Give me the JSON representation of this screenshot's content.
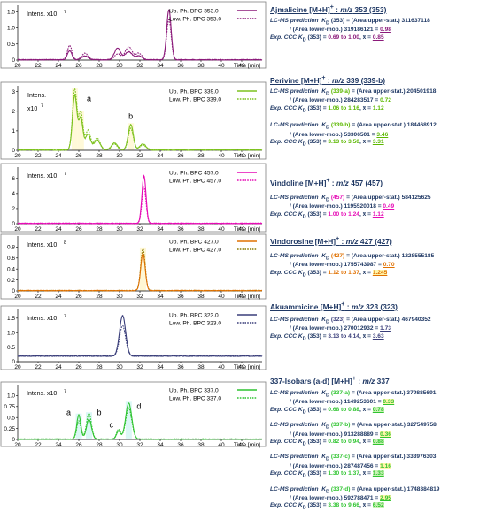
{
  "chart_data": [
    {
      "type": "line",
      "intens_label": "Intens. x10",
      "intens_exp": "7",
      "xlabel": "Time [min]",
      "xlim": [
        20,
        44
      ],
      "x_ticks": [
        20,
        22,
        24,
        26,
        28,
        30,
        32,
        34,
        36,
        38,
        40,
        42
      ],
      "ylim": [
        0,
        1.7
      ],
      "y_ticks": [
        0,
        0.5,
        1.0,
        1.5
      ],
      "y_tick_labels": [
        "0",
        "0.5",
        "1.0",
        "1.5"
      ],
      "legend": [
        "Up. Ph. BPC 353.0",
        "Low. Ph. BPC 353.0"
      ],
      "color": "#8b1a7a",
      "peaks": [
        {
          "x": 25.1,
          "h_up": 0.28,
          "h_low": 0.45,
          "w": 0.22
        },
        {
          "x": 26.6,
          "h_up": 0.12,
          "h_low": 0.2,
          "w": 0.3
        },
        {
          "x": 29.8,
          "h_up": 0.36,
          "h_low": 0.18,
          "w": 0.3
        },
        {
          "x": 30.9,
          "h_up": 0.25,
          "h_low": 0.4,
          "w": 0.35
        },
        {
          "x": 31.9,
          "h_up": 0.12,
          "h_low": 0.2,
          "w": 0.3
        },
        {
          "x": 34.85,
          "h_up": 1.55,
          "h_low": 1.25,
          "w": 0.22
        }
      ],
      "labels": []
    },
    {
      "type": "line",
      "intens_label": "Intens.",
      "intens_exp_label": "x10",
      "intens_exp": "7",
      "xlabel": "Time [min]",
      "xlim": [
        20,
        44
      ],
      "x_ticks": [
        20,
        22,
        24,
        26,
        28,
        30,
        32,
        34,
        36,
        38,
        40,
        42
      ],
      "ylim": [
        0,
        3.3
      ],
      "y_ticks": [
        0,
        1,
        2,
        3
      ],
      "y_tick_labels": [
        "0",
        "1",
        "2",
        "3"
      ],
      "legend": [
        "Up. Ph. BPC 339.0",
        "Low. Ph. BPC 339.0"
      ],
      "color": "#7dc21e",
      "peaks": [
        {
          "x": 25.6,
          "h_up": 2.8,
          "h_low": 3.1,
          "w": 0.22
        },
        {
          "x": 26.2,
          "h_up": 1.6,
          "h_low": 1.9,
          "w": 0.2
        },
        {
          "x": 26.9,
          "h_up": 0.8,
          "h_low": 1.0,
          "w": 0.25
        },
        {
          "x": 27.8,
          "h_up": 0.5,
          "h_low": 0.6,
          "w": 0.3
        },
        {
          "x": 29.5,
          "h_up": 0.35,
          "h_low": 0.3,
          "w": 0.3
        },
        {
          "x": 31.1,
          "h_up": 1.3,
          "h_low": 1.1,
          "w": 0.25
        },
        {
          "x": 32.3,
          "h_up": 0.3,
          "h_low": 0.25,
          "w": 0.3
        }
      ],
      "labels": [
        {
          "text": "a",
          "x": 27.0,
          "y": 2.5
        },
        {
          "text": "b",
          "x": 31.1,
          "y": 1.6
        }
      ]
    },
    {
      "type": "line",
      "intens_label": "Intens. x10",
      "intens_exp": "7",
      "xlabel": "Time [min]",
      "xlim": [
        20,
        44
      ],
      "x_ticks": [
        20,
        22,
        24,
        26,
        28,
        30,
        32,
        34,
        36,
        38,
        40,
        42
      ],
      "ylim": [
        0,
        7.5
      ],
      "y_ticks": [
        0,
        2,
        4,
        6
      ],
      "y_tick_labels": [
        "0",
        "2",
        "4",
        "6"
      ],
      "legend": [
        "Up. Ph. BPC 457.0",
        "Low. Ph. BPC 457.0"
      ],
      "color": "#e60ab5",
      "peaks": [
        {
          "x": 32.4,
          "h_up": 6.3,
          "h_low": 4.8,
          "w": 0.2
        }
      ],
      "labels": []
    },
    {
      "type": "line",
      "intens_label": "Intens. x10",
      "intens_exp": "8",
      "xlabel": "Time [min]",
      "xlim": [
        20,
        44
      ],
      "x_ticks": [
        20,
        22,
        24,
        26,
        28,
        30,
        32,
        34,
        36,
        38,
        40,
        42
      ],
      "ylim": [
        0,
        1.0
      ],
      "y_ticks": [
        0,
        0.2,
        0.4,
        0.6,
        0.8
      ],
      "y_tick_labels": [
        "0",
        "0.2",
        "0.4",
        "0.6",
        "0.8"
      ],
      "legend": [
        "Up. Ph. BPC 427.0",
        "Low. Ph. BPC 427.0"
      ],
      "color": "#e07000",
      "color_low": "#8a7a00",
      "peaks": [
        {
          "x": 32.3,
          "h_up": 0.68,
          "h_low": 0.76,
          "w": 0.22
        }
      ],
      "labels": []
    },
    {
      "type": "line",
      "intens_label": "Intens. x10",
      "intens_exp": "7",
      "xlabel": "Time [min]",
      "xlim": [
        20,
        44
      ],
      "x_ticks": [
        20,
        22,
        24,
        26,
        28,
        30,
        32,
        34,
        36,
        38,
        40,
        42
      ],
      "ylim": [
        0,
        1.8
      ],
      "y_ticks": [
        0,
        0.5,
        1.0,
        1.5
      ],
      "y_tick_labels": [
        "0",
        "0.5",
        "1.0",
        "1.5"
      ],
      "legend": [
        "Up. Ph. BPC 323.0",
        "Low. Ph. BPC 323.0"
      ],
      "color": "#3a3e7a",
      "baseline": 0.18,
      "peaks": [
        {
          "x": 30.3,
          "h_up": 1.4,
          "h_low": 1.05,
          "w": 0.3
        }
      ],
      "labels": []
    },
    {
      "type": "line",
      "intens_label": "Intens. x10",
      "intens_exp": "7",
      "xlabel": "Time [min]",
      "xlim": [
        20,
        44
      ],
      "x_ticks": [
        20,
        22,
        24,
        26,
        28,
        30,
        32,
        34,
        36,
        38,
        40,
        42
      ],
      "ylim": [
        0,
        1.25
      ],
      "y_ticks": [
        0,
        0.25,
        0.5,
        0.75,
        1.0
      ],
      "y_tick_labels": [
        "0",
        "0.25",
        "0.5",
        "0.75",
        "1.0"
      ],
      "legend": [
        "Up. Ph. BPC 337.0",
        "Low. Ph. BPC 337.0"
      ],
      "color": "#2fc430",
      "peaks": [
        {
          "x": 26.0,
          "h_up": 0.55,
          "h_low": 0.42,
          "w": 0.2
        },
        {
          "x": 27.0,
          "h_up": 0.45,
          "h_low": 0.58,
          "w": 0.25
        },
        {
          "x": 29.9,
          "h_up": 0.18,
          "h_low": 0.22,
          "w": 0.2
        },
        {
          "x": 30.9,
          "h_up": 0.82,
          "h_low": 0.7,
          "w": 0.3
        }
      ],
      "labels": [
        {
          "text": "a",
          "x": 25.0,
          "y": 0.55
        },
        {
          "text": "b",
          "x": 28.0,
          "y": 0.55
        },
        {
          "text": "c",
          "x": 29.2,
          "y": 0.27
        },
        {
          "text": "d",
          "x": 31.9,
          "y": 0.7
        }
      ]
    }
  ],
  "info": {
    "p1": {
      "title": "Ajmalicine [M+H]",
      "sup": "+",
      "title_mid": " : ",
      "title_mz": "m/z",
      "title_tail": " 353 (353)",
      "rows": [
        {
          "a": "LC-MS prediction",
          "b": "K",
          "c": "D",
          "d": " (353) = (Area upper-stat.) 311637118"
        },
        {
          "a": "",
          "b": "",
          "c": "",
          "d": "/ (Area lower-mob.) 319186121 = ",
          "v": "0.98"
        },
        {
          "a": "Exp. CCC",
          "b": "K",
          "c": "D",
          "d": " (353) = ",
          "r": "0.69 to 1.00",
          "e": ",  ",
          "x": "x̄",
          "eq": " = ",
          "m": "0.85"
        }
      ]
    },
    "p2": {
      "title": "Perivine [M+H]",
      "sup": "+",
      "title_mid": " : ",
      "title_mz": "m/z",
      "title_tail": " 339 (339-b)",
      "a_rows": [
        {
          "a": "LC-MS prediction",
          "b": "K",
          "c": "D",
          "id": "(339-a)",
          "d": " = (Area upper-stat.) 204501918"
        },
        {
          "d": "/ (Area lower-mob.) 284283517 = ",
          "v": "0.72"
        },
        {
          "a": "Exp. CCC",
          "b": "K",
          "c": "D",
          "d": " (353) = ",
          "r": "1.06 to 1.16",
          "e": ",  ",
          "x": "x̄",
          "eq": " = ",
          "m": "1.12"
        }
      ],
      "b_rows": [
        {
          "a": "LC-MS prediction",
          "b": "K",
          "c": "D",
          "id": "(339-b)",
          "d": " = (Area upper-stat.) 184468912"
        },
        {
          "d": "/ (Area lower-mob.) 53306501 = ",
          "v": "3.46"
        },
        {
          "a": "Exp. CCC",
          "b": "K",
          "c": "D",
          "d": " (353) = ",
          "r": "3.13 to 3.50",
          "e": ",  ",
          "x": "x̄",
          "eq": " = ",
          "m": "3.31"
        }
      ]
    },
    "p3": {
      "title": "Vindoline [M+H]",
      "sup": "+",
      "title_mid": " : ",
      "title_mz": "m/z",
      "title_tail": " 457 (457)",
      "rows": [
        {
          "a": "LC-MS prediction",
          "b": "K",
          "c": "D",
          "id": "(457)",
          "d": " = (Area upper-stat.) 584125625"
        },
        {
          "d": "/ (Area lower-mob.) 1195520018 = ",
          "v": "0.49"
        },
        {
          "a": "Exp. CCC",
          "b": "K",
          "c": "D",
          "d": " (353) = ",
          "r": "1.00 to 1.24",
          "e": ",  ",
          "x": "x̄",
          "eq": " = ",
          "m": "1.12"
        }
      ]
    },
    "p4": {
      "title": "Vindorosine [M+H]",
      "sup": "+",
      "title_mid": " : ",
      "title_mz": "m/z",
      "title_tail": " 427 (427)",
      "rows": [
        {
          "a": "LC-MS prediction",
          "b": "K",
          "c": "D",
          "id": "(427)",
          "d": " = (Area upper-stat.) 1228555185"
        },
        {
          "d": "/ (Area lower-mob.) 1755743987 = ",
          "v": "0.70"
        },
        {
          "a": "Exp. CCC",
          "b": "K",
          "c": "D",
          "d": " (353) = ",
          "r": "1.12 to 1.37",
          "e": ",  ",
          "x": "x̄",
          "eq": " = ",
          "m": "1.245"
        }
      ]
    },
    "p5": {
      "title": "Akuammicine [M+H]",
      "sup": "+",
      "title_mid": " : ",
      "title_mz": "m/z",
      "title_tail": " 323 (323)",
      "rows": [
        {
          "a": "LC-MS prediction",
          "b": "K",
          "c": "D",
          "id": "(323)",
          "d": " = (Area upper-stat.) 467940352"
        },
        {
          "d": "/ (Area lower-mob.) 270012932 = ",
          "v": "1.73"
        },
        {
          "a": "Exp. CCC",
          "b": "K",
          "c": "D",
          "d": " (353) = ",
          "r": "3.13 to 4.14",
          "e": ",  ",
          "x": "x̄",
          "eq": " = ",
          "m": "3.63"
        }
      ]
    },
    "p6": {
      "title": "337-Isobars (a-d) [M+H]",
      "sup": "+",
      "title_mid": " : ",
      "title_mz": "m/z",
      "title_tail": " 337",
      "blocks": [
        {
          "id": "(337-a)",
          "up": " = (Area upper-stat.) 379885691",
          "low": "/ (Area lower-mob.) 1149253601 = ",
          "v": "0.33",
          "r": "0.68 to 0.88",
          "m": "0.78"
        },
        {
          "id": "(337-b)",
          "up": " = (Area upper-stat.) 327549758",
          "low": "/ (Area lower-mob.) 913288889 = ",
          "v": "0.36",
          "r": "0.82 to 0.94",
          "m": "0.88"
        },
        {
          "id": "(337-c)",
          "up": " = (Area upper-stat.) 333976303",
          "low": "/ (Area lower-mob.) 287487456 = ",
          "v": "1.16",
          "r": "1.30 to 1.37",
          "m": "1.33"
        },
        {
          "id": "(337-d)",
          "up": " = (Area upper-stat.) 1748384819",
          "low": "/ (Area lower-mob.) 592788471 = ",
          "v": "2.95",
          "r": "3.38 to 9.66",
          "m": "6.52"
        }
      ],
      "lc": "LC-MS prediction",
      "exp": "Exp. CCC",
      "k": "K",
      "d": "D",
      "k353": " (353) = ",
      "sep": ",  ",
      "xbar": "x̄",
      "eq": " = "
    }
  }
}
